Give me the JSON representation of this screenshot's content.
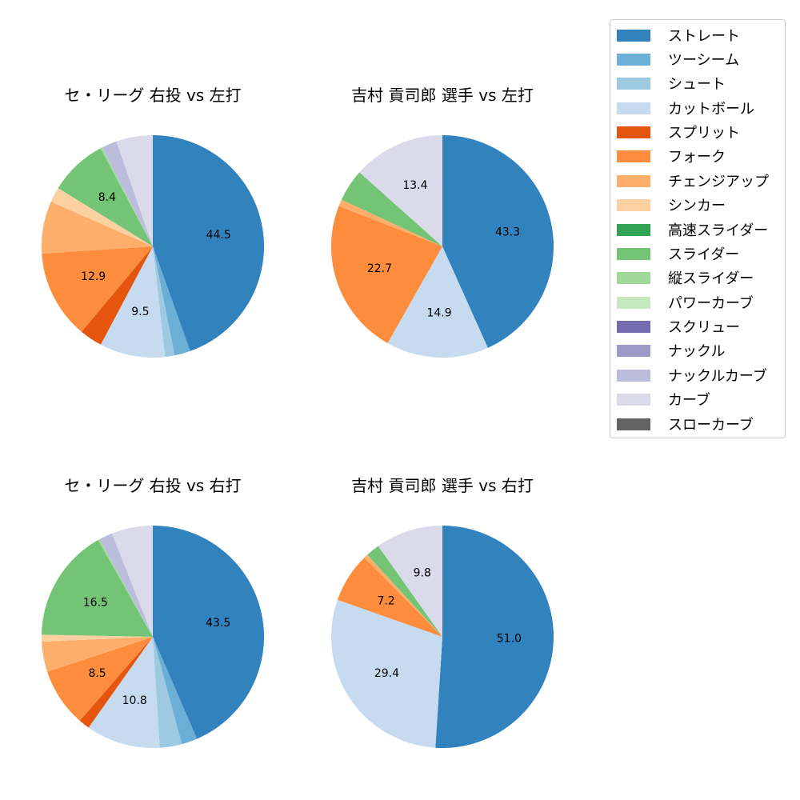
{
  "legend": {
    "items": [
      {
        "label": "ストレート",
        "color": "#3182bd"
      },
      {
        "label": "ツーシーム",
        "color": "#6baed6"
      },
      {
        "label": "シュート",
        "color": "#9ecae1"
      },
      {
        "label": "カットボール",
        "color": "#c6dbef"
      },
      {
        "label": "スプリット",
        "color": "#e6550d"
      },
      {
        "label": "フォーク",
        "color": "#fd8d3c"
      },
      {
        "label": "チェンジアップ",
        "color": "#fdae6b"
      },
      {
        "label": "シンカー",
        "color": "#fdd0a2"
      },
      {
        "label": "高速スライダー",
        "color": "#31a354"
      },
      {
        "label": "スライダー",
        "color": "#74c476"
      },
      {
        "label": "縦スライダー",
        "color": "#a1d99b"
      },
      {
        "label": "パワーカーブ",
        "color": "#c7e9c0"
      },
      {
        "label": "スクリュー",
        "color": "#756bb1"
      },
      {
        "label": "ナックル",
        "color": "#9e9ac8"
      },
      {
        "label": "ナックルカーブ",
        "color": "#bcbddc"
      },
      {
        "label": "カーブ",
        "color": "#dadaeb"
      },
      {
        "label": "スローカーブ",
        "color": "#636363"
      }
    ]
  },
  "chart_data": [
    {
      "type": "pie",
      "title": "セ・リーグ 右投 vs 左打",
      "categories": [
        "ストレート",
        "ツーシーム",
        "シュート",
        "カットボール",
        "スプリット",
        "フォーク",
        "チェンジアップ",
        "シンカー",
        "スライダー",
        "縦スライダー",
        "ナックルカーブ",
        "カーブ"
      ],
      "values": [
        44.5,
        2.3,
        1.4,
        9.5,
        3.3,
        12.9,
        7.6,
        2.2,
        8.4,
        0.3,
        2.2,
        5.3
      ],
      "labels_shown": [
        "44.5",
        "",
        "",
        "9.5",
        "",
        "12.9",
        "",
        "",
        "8.4",
        "",
        "",
        ""
      ],
      "startangle": 90,
      "direction": "clockwise"
    },
    {
      "type": "pie",
      "title": "吉村 貢司郎 選手 vs 左打",
      "categories": [
        "ストレート",
        "カットボール",
        "フォーク",
        "チェンジアップ",
        "スライダー",
        "カーブ"
      ],
      "values": [
        43.3,
        14.9,
        22.7,
        1.0,
        4.7,
        13.4
      ],
      "labels_shown": [
        "43.3",
        "14.9",
        "22.7",
        "",
        "",
        "13.4"
      ],
      "startangle": 90,
      "direction": "clockwise"
    },
    {
      "type": "pie",
      "title": "セ・リーグ 右投 vs 右打",
      "categories": [
        "ストレート",
        "ツーシーム",
        "シュート",
        "カットボール",
        "スプリット",
        "フォーク",
        "チェンジアップ",
        "シンカー",
        "スライダー",
        "縦スライダー",
        "ナックルカーブ",
        "カーブ"
      ],
      "values": [
        43.5,
        2.3,
        3.2,
        10.8,
        1.6,
        8.5,
        4.4,
        1.0,
        16.5,
        0.3,
        1.9,
        6.0
      ],
      "labels_shown": [
        "43.5",
        "",
        "",
        "10.8",
        "",
        "8.5",
        "",
        "",
        "16.5",
        "",
        "",
        ""
      ],
      "startangle": 90,
      "direction": "clockwise"
    },
    {
      "type": "pie",
      "title": "吉村 貢司郎 選手 vs 右打",
      "categories": [
        "ストレート",
        "カットボール",
        "フォーク",
        "チェンジアップ",
        "スライダー",
        "カーブ"
      ],
      "values": [
        51.0,
        29.4,
        7.2,
        0.6,
        2.0,
        9.8
      ],
      "labels_shown": [
        "51.0",
        "29.4",
        "7.2",
        "",
        "",
        "9.8"
      ],
      "startangle": 90,
      "direction": "clockwise"
    }
  ]
}
